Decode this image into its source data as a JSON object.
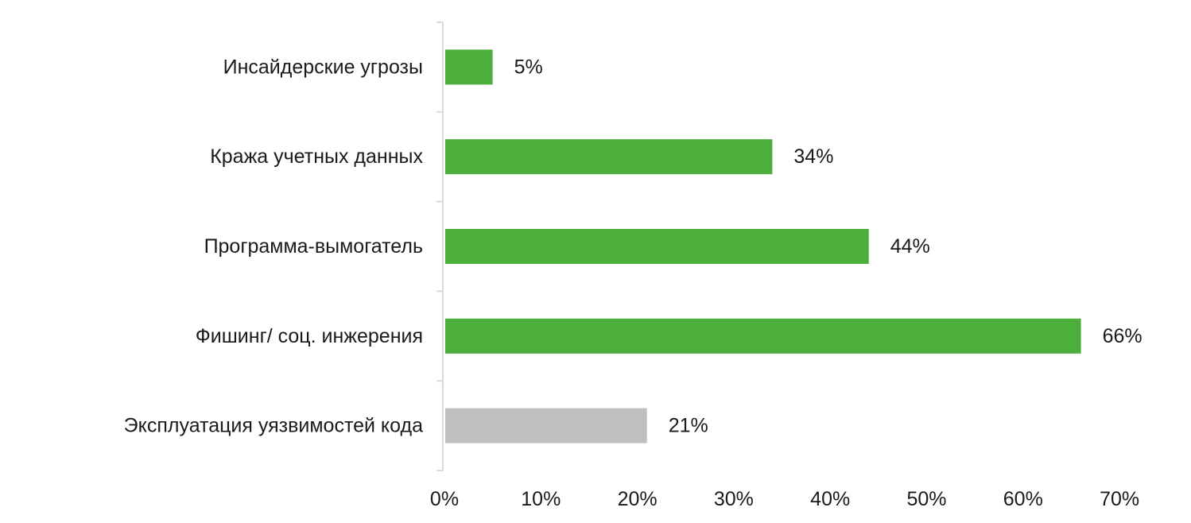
{
  "chart_data": {
    "type": "bar",
    "orientation": "horizontal",
    "title": "",
    "xlabel": "",
    "ylabel": "",
    "categories": [
      "Инсайдерские угрозы",
      "Кража учетных данных",
      "Программа-вымогатель",
      "Фишинг/ соц. инжерения",
      "Эксплуатация уязвимостей кода"
    ],
    "values": [
      5,
      34,
      44,
      66,
      21
    ],
    "value_labels": [
      "5%",
      "34%",
      "44%",
      "66%",
      "21%"
    ],
    "bar_colors": [
      "#4caf3c",
      "#4caf3c",
      "#4caf3c",
      "#4caf3c",
      "#bfbfbf"
    ],
    "xlim": [
      0,
      70
    ],
    "xticks": [
      0,
      10,
      20,
      30,
      40,
      50,
      60,
      70
    ],
    "xtick_labels": [
      "0%",
      "10%",
      "20%",
      "30%",
      "40%",
      "50%",
      "60%",
      "70%"
    ],
    "grid": false,
    "legend": "none"
  },
  "colors": {
    "accent": "#4caf3c",
    "muted": "#bfbfbf",
    "axis": "#d9d9d9",
    "text": "#1a1a1a"
  }
}
